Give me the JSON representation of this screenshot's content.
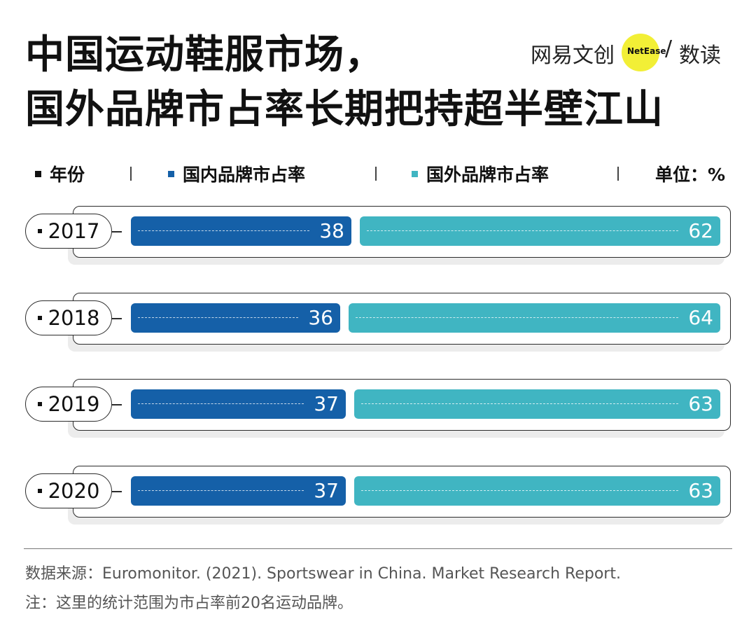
{
  "title": {
    "line1": "中国运动鞋服市场，",
    "line2": "国外品牌市占率长期把持超半壁江山"
  },
  "logo": {
    "cn": "网易文创",
    "en": "NetEase",
    "slash": "/",
    "sub": "数读"
  },
  "legend": {
    "year_label": "年份",
    "domestic_label": "国内品牌市占率",
    "foreign_label": "国外品牌市占率",
    "unit_label": "单位：%"
  },
  "colors": {
    "domestic": "#1560a8",
    "foreign": "#40b5c2",
    "text": "#111111"
  },
  "chart_data": {
    "type": "bar",
    "stacked": true,
    "orientation": "horizontal",
    "title": "中国运动鞋服市场，国外品牌市占率长期把持超半壁江山",
    "categories": [
      "2017",
      "2018",
      "2019",
      "2020"
    ],
    "series": [
      {
        "name": "国内品牌市占率",
        "values": [
          38,
          36,
          37,
          37
        ]
      },
      {
        "name": "国外品牌市占率",
        "values": [
          62,
          64,
          63,
          63
        ]
      }
    ],
    "unit": "%",
    "xlim": [
      0,
      100
    ]
  },
  "footer": {
    "source": "数据来源：Euromonitor. (2021). Sportswear in China. Market Research Report.",
    "note": "注：这里的统计范围为市占率前20名运动品牌。"
  }
}
